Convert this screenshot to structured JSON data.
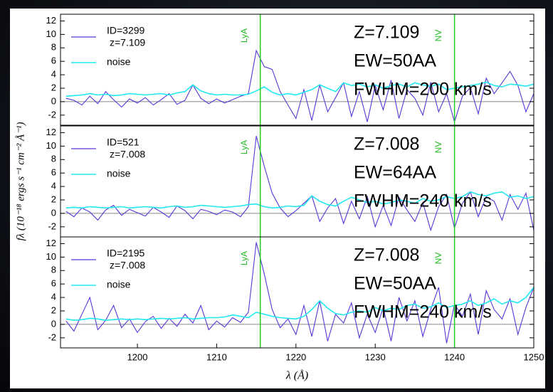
{
  "chart_data": [
    {
      "type": "line",
      "redshift_label": "z=7.109",
      "annotations": [
        "Z=7.109",
        "EW=50AA",
        "FWHM=200 km/s"
      ],
      "vlines": [
        {
          "x": 1215.5,
          "label": "LyA"
        },
        {
          "x": 1240,
          "label": "NV"
        }
      ],
      "x": [
        1191,
        1192,
        1193,
        1194,
        1195,
        1196,
        1197,
        1198,
        1199,
        1200,
        1201,
        1202,
        1203,
        1204,
        1205,
        1206,
        1207,
        1208,
        1209,
        1210,
        1211,
        1212,
        1213,
        1214,
        1215,
        1216,
        1217,
        1218,
        1219,
        1220,
        1221,
        1222,
        1223,
        1224,
        1225,
        1226,
        1227,
        1228,
        1229,
        1230,
        1231,
        1232,
        1233,
        1234,
        1235,
        1236,
        1237,
        1238,
        1239,
        1240,
        1241,
        1242,
        1243,
        1244,
        1245,
        1246,
        1247,
        1248,
        1249,
        1250
      ],
      "series": [
        {
          "name": "ID=3299",
          "color": "#5a35d8",
          "values": [
            0.5,
            0.2,
            -0.5,
            0.8,
            -0.3,
            1.5,
            0.3,
            -0.8,
            0.4,
            -0.2,
            0.6,
            -0.5,
            0.3,
            1.2,
            -0.4,
            0.2,
            2.5,
            0.5,
            -0.3,
            0.4,
            -0.2,
            0.3,
            0.8,
            1.2,
            7.6,
            5.2,
            4.8,
            1.5,
            -0.5,
            -2.5,
            1.8,
            -2.8,
            2.5,
            -1.5,
            0.6,
            2.8,
            -2.2,
            1.5,
            -3,
            2.4,
            -1.2,
            3.2,
            -2.5,
            1.8,
            0.5,
            -2,
            2.9,
            -1.5,
            1.2,
            -3,
            0.8,
            2.1,
            -1.8,
            3.5,
            1.2,
            2.8,
            4.5,
            2.4,
            -1.5,
            1.2
          ]
        },
        {
          "name": "noise",
          "color": "#22e8f0",
          "values": [
            0.8,
            0.9,
            1.0,
            1.2,
            1.0,
            1.1,
            0.9,
            1.0,
            1.2,
            1.1,
            1.0,
            1.1,
            1.2,
            1.0,
            1.3,
            1.5,
            2.5,
            1.6,
            1.2,
            1.0,
            1.1,
            1.0,
            1.0,
            1.1,
            1.6,
            2.2,
            1.4,
            1.0,
            1.2,
            1.0,
            1.4,
            1.8,
            2.5,
            2.0,
            1.5,
            2.8,
            2.4,
            2.6,
            2.2,
            2.5,
            2.0,
            2.4,
            2.6,
            2.2,
            2.8,
            2.5,
            2.3,
            2.6,
            1.8,
            2.0,
            2.2,
            2.4,
            2.6,
            2.9,
            2.4,
            2.2,
            2.6,
            2.5,
            2.3,
            2.6
          ]
        }
      ],
      "xlim": [
        1190.3,
        1250
      ],
      "ylim": [
        -3.5,
        13
      ],
      "yticks": [
        -2,
        0,
        2,
        4,
        6,
        8,
        10,
        12
      ]
    },
    {
      "type": "line",
      "redshift_label": "z=7.008",
      "annotations": [
        "Z=7.008",
        "EW=64AA",
        "FWHM=240 km/s"
      ],
      "vlines": [
        {
          "x": 1215.5,
          "label": "LyA"
        },
        {
          "x": 1240,
          "label": "NV"
        }
      ],
      "ylabel": "fλ (10⁻¹⁸ ergs s⁻¹ cm⁻² Å⁻¹)",
      "x": [
        1191,
        1192,
        1193,
        1194,
        1195,
        1196,
        1197,
        1198,
        1199,
        1200,
        1201,
        1202,
        1203,
        1204,
        1205,
        1206,
        1207,
        1208,
        1209,
        1210,
        1211,
        1212,
        1213,
        1214,
        1215,
        1216,
        1217,
        1218,
        1219,
        1220,
        1221,
        1222,
        1223,
        1224,
        1225,
        1226,
        1227,
        1228,
        1229,
        1230,
        1231,
        1232,
        1233,
        1234,
        1235,
        1236,
        1237,
        1238,
        1239,
        1240,
        1241,
        1242,
        1243,
        1244,
        1245,
        1246,
        1247,
        1248,
        1249,
        1250
      ],
      "series": [
        {
          "name": "ID=521",
          "color": "#5a35d8",
          "values": [
            0.3,
            -0.5,
            0.8,
            0.2,
            -1.0,
            0.5,
            1.2,
            -0.3,
            0.6,
            0.1,
            -0.4,
            0.9,
            0.2,
            -0.6,
            1.1,
            0.4,
            -0.8,
            0.6,
            0.3,
            -0.2,
            0.5,
            0.2,
            -0.5,
            1.0,
            11.5,
            7.0,
            3.0,
            0.8,
            -0.5,
            0.4,
            1.5,
            2.6,
            -1.2,
            0.8,
            2.2,
            -1.5,
            1.8,
            -0.8,
            2.5,
            -2.0,
            1.2,
            -1.8,
            2.4,
            0.5,
            -1.2,
            1.6,
            -2.5,
            1.0,
            2.8,
            -2.2,
            1.5,
            3.2,
            -0.5,
            2.5,
            1.8,
            -1.0,
            2.8,
            0.6,
            3.0,
            -2.5
          ]
        },
        {
          "name": "noise",
          "color": "#22e8f0",
          "values": [
            0.8,
            0.9,
            0.8,
            1.0,
            0.9,
            0.8,
            0.9,
            1.0,
            0.8,
            0.9,
            1.0,
            0.9,
            0.8,
            1.0,
            1.1,
            0.9,
            1.0,
            1.2,
            1.1,
            1.0,
            0.9,
            1.0,
            1.1,
            1.3,
            1.4,
            1.0,
            0.8,
            0.9,
            1.1,
            1.0,
            1.2,
            2.6,
            1.8,
            1.3,
            1.1,
            1.8,
            2.4,
            2.0,
            1.6,
            1.8,
            1.4,
            1.6,
            2.0,
            1.8,
            1.5,
            2.2,
            1.8,
            2.0,
            2.5,
            2.2,
            2.5,
            3.2,
            2.8,
            2.6,
            3.0,
            3.2,
            2.4,
            2.6,
            2.2,
            2.5
          ]
        }
      ],
      "xlim": [
        1190.3,
        1250
      ],
      "ylim": [
        -3.5,
        13
      ],
      "yticks": [
        -2,
        0,
        2,
        4,
        6,
        8,
        10,
        12
      ]
    },
    {
      "type": "line",
      "redshift_label": "z=7.008",
      "annotations": [
        "Z=7.008",
        "EW=50AA",
        "FWHM=240 km/s"
      ],
      "vlines": [
        {
          "x": 1215.5,
          "label": "LyA"
        },
        {
          "x": 1240,
          "label": "NV"
        }
      ],
      "xlabel": "λ  (Å)",
      "x": [
        1191,
        1192,
        1193,
        1194,
        1195,
        1196,
        1197,
        1198,
        1199,
        1200,
        1201,
        1202,
        1203,
        1204,
        1205,
        1206,
        1207,
        1208,
        1209,
        1210,
        1211,
        1212,
        1213,
        1214,
        1215,
        1216,
        1217,
        1218,
        1219,
        1220,
        1221,
        1222,
        1223,
        1224,
        1225,
        1226,
        1227,
        1228,
        1229,
        1230,
        1231,
        1232,
        1233,
        1234,
        1235,
        1236,
        1237,
        1238,
        1239,
        1240,
        1241,
        1242,
        1243,
        1244,
        1245,
        1246,
        1247,
        1248,
        1249,
        1250
      ],
      "series": [
        {
          "name": "ID=2195",
          "color": "#5a35d8",
          "values": [
            0.5,
            -1.0,
            1.5,
            4.0,
            -0.8,
            0.6,
            2.8,
            -0.5,
            0.8,
            -1.2,
            0.4,
            1.2,
            -0.6,
            0.9,
            -0.3,
            1.5,
            0.2,
            2.8,
            -0.8,
            0.5,
            -0.4,
            1.0,
            0.3,
            1.8,
            12.2,
            7.5,
            2.2,
            -0.5,
            0.8,
            -1.5,
            2.8,
            -1.8,
            3.5,
            -2.5,
            1.5,
            0.2,
            3.2,
            -2.0,
            1.5,
            -1.2,
            2.5,
            -2.5,
            4.0,
            0.5,
            3.5,
            -1.8,
            2.2,
            5.5,
            -2.8,
            3.0,
            1.2,
            4.5,
            -1.5,
            5.0,
            2.2,
            0.8,
            3.8,
            -1.5,
            2.5,
            5.5
          ]
        },
        {
          "name": "noise",
          "color": "#22e8f0",
          "values": [
            0.8,
            0.6,
            0.7,
            0.9,
            0.8,
            0.6,
            0.7,
            0.8,
            0.7,
            0.8,
            0.7,
            0.8,
            0.9,
            0.8,
            0.9,
            1.0,
            0.8,
            0.9,
            1.0,
            1.0,
            1.1,
            1.4,
            1.2,
            1.0,
            1.8,
            1.5,
            1.2,
            1.0,
            0.9,
            0.8,
            1.2,
            2.2,
            3.5,
            2.4,
            1.6,
            1.4,
            1.8,
            2.0,
            1.8,
            2.5,
            2.0,
            2.4,
            2.2,
            2.8,
            3.0,
            2.4,
            2.6,
            3.2,
            2.5,
            2.8,
            3.0,
            3.5,
            2.8,
            3.2,
            3.8,
            3.0,
            3.5,
            3.2,
            4.0,
            5.5
          ]
        }
      ],
      "xlim": [
        1190.3,
        1250
      ],
      "ylim": [
        -3.5,
        13
      ],
      "yticks": [
        -2,
        0,
        2,
        4,
        6,
        8,
        10,
        12
      ],
      "xticks": [
        1200,
        1210,
        1220,
        1230,
        1240,
        1250
      ]
    }
  ]
}
